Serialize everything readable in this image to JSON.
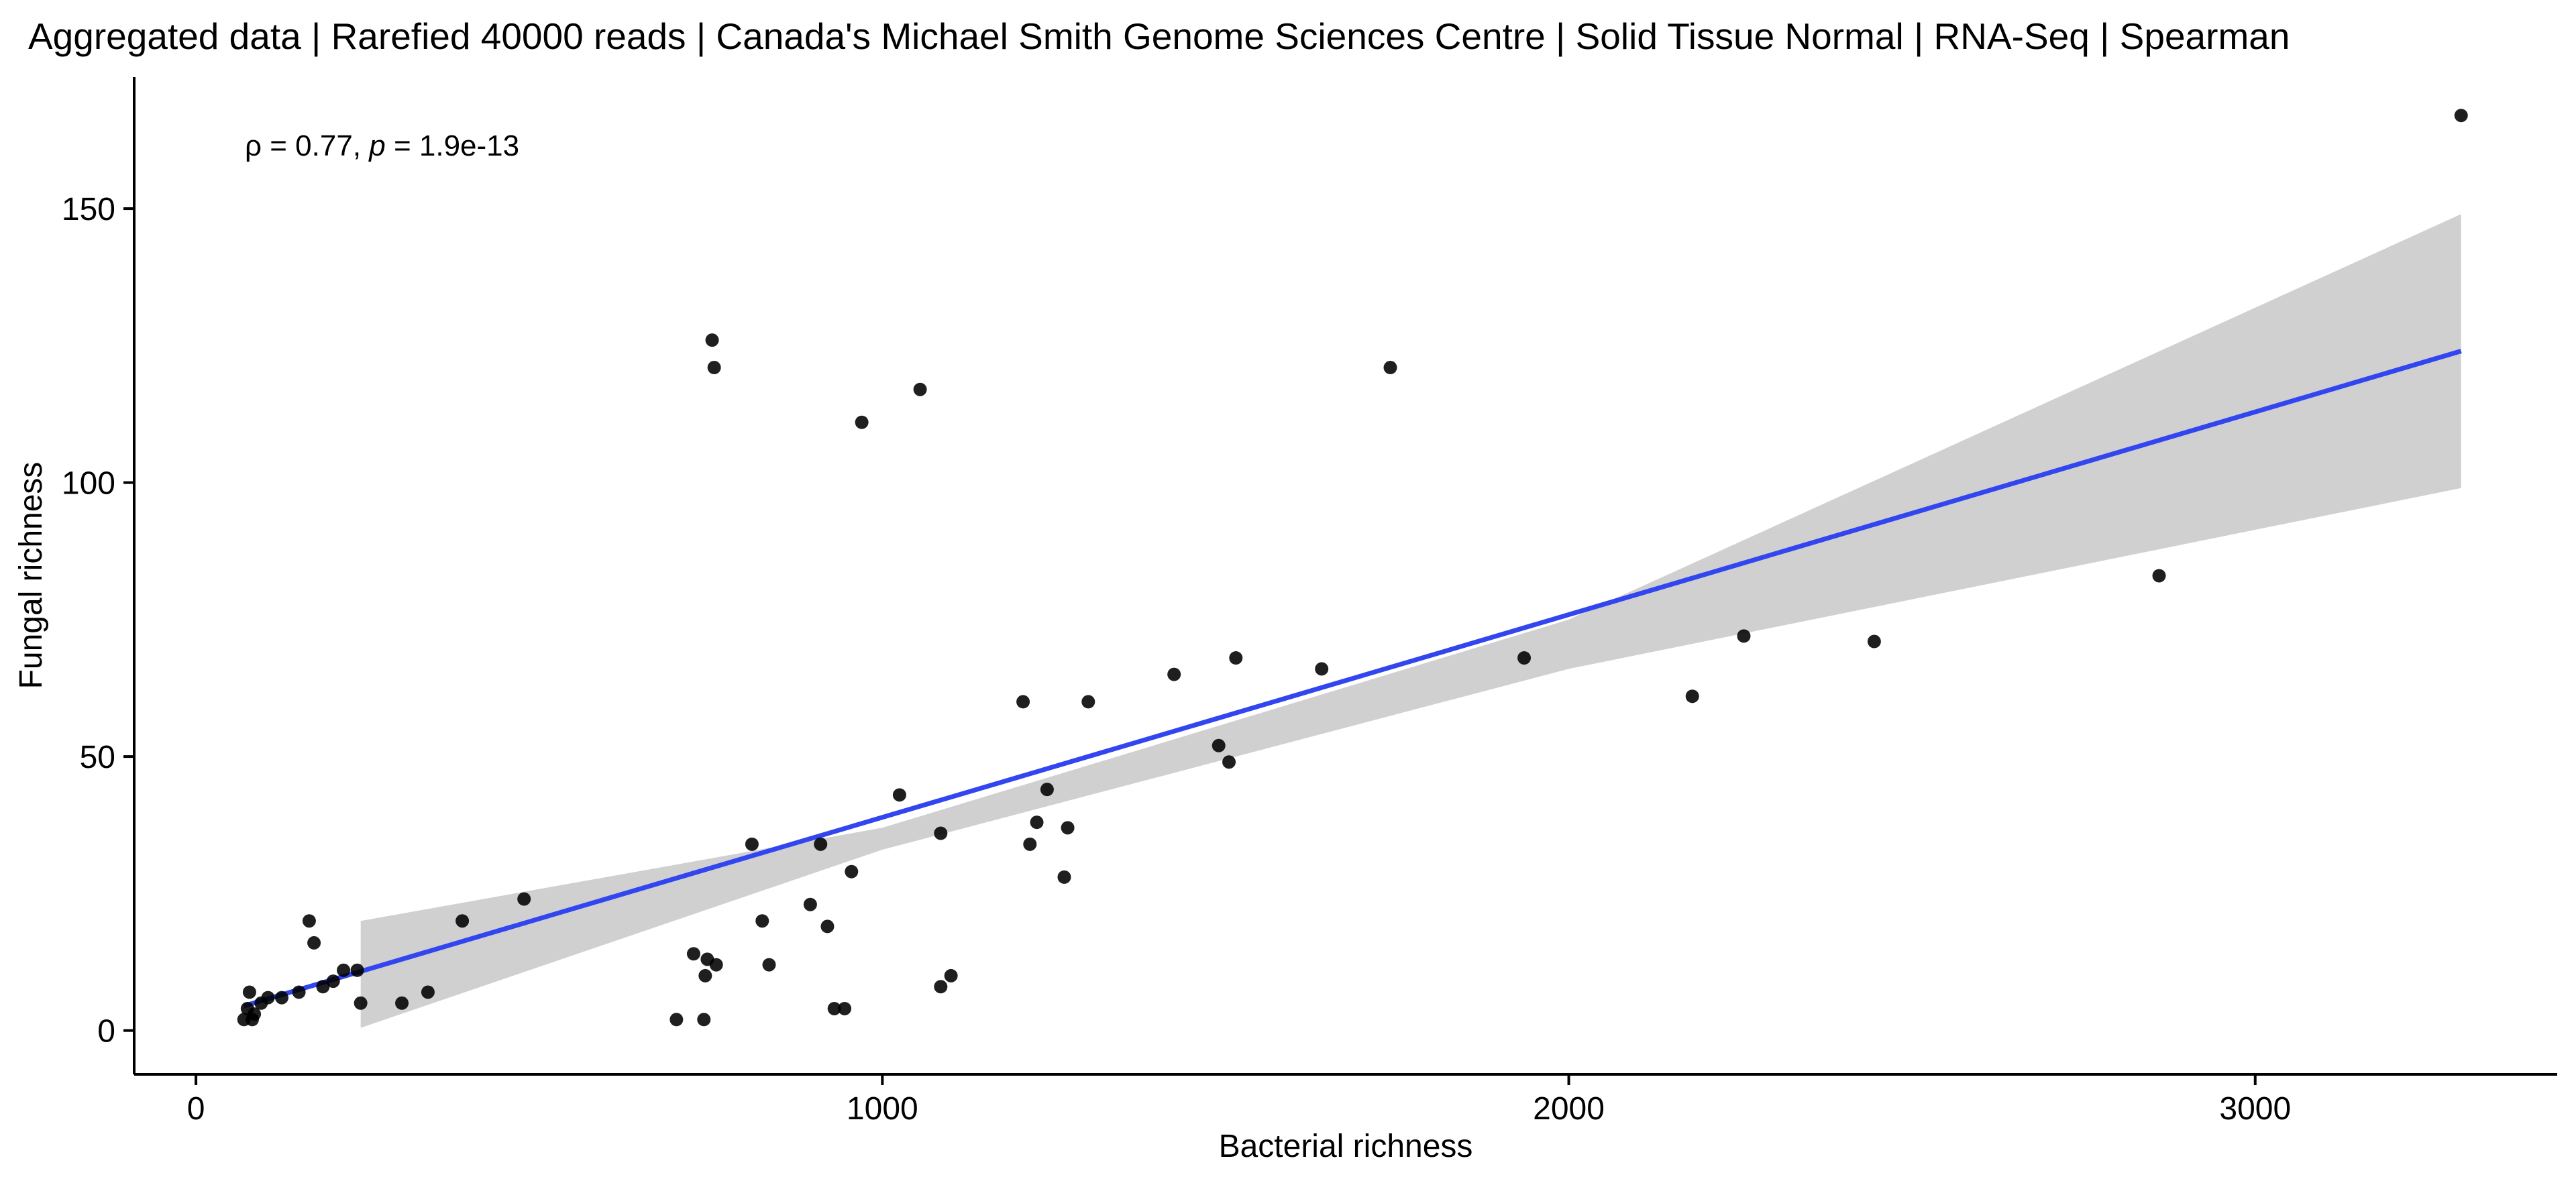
{
  "chart_data": {
    "type": "scatter",
    "title": "Aggregated data | Rarefied 40000 reads | Canada's Michael Smith Genome Sciences Centre | Solid Tissue Normal | RNA-Seq | Spearman",
    "xlabel": "Bacterial richness",
    "ylabel": "Fungal richness",
    "xlim": [
      -90,
      3440
    ],
    "ylim": [
      -8,
      174
    ],
    "xticks": [
      0,
      1000,
      2000,
      3000
    ],
    "yticks": [
      0,
      50,
      100,
      150
    ],
    "grid": false,
    "legend": "none",
    "annotation": {
      "rho_symbol": "ρ",
      "rho_text": " = 0.77, ",
      "p_symbol": "p",
      "p_text": " = 1.9e-13"
    },
    "points": [
      {
        "x": 70,
        "y": 2
      },
      {
        "x": 75,
        "y": 4
      },
      {
        "x": 78,
        "y": 7
      },
      {
        "x": 82,
        "y": 2
      },
      {
        "x": 85,
        "y": 3
      },
      {
        "x": 95,
        "y": 5
      },
      {
        "x": 105,
        "y": 6
      },
      {
        "x": 125,
        "y": 6
      },
      {
        "x": 150,
        "y": 7
      },
      {
        "x": 165,
        "y": 20
      },
      {
        "x": 172,
        "y": 16
      },
      {
        "x": 185,
        "y": 8
      },
      {
        "x": 200,
        "y": 9
      },
      {
        "x": 215,
        "y": 11
      },
      {
        "x": 235,
        "y": 11
      },
      {
        "x": 240,
        "y": 5
      },
      {
        "x": 300,
        "y": 5
      },
      {
        "x": 338,
        "y": 7
      },
      {
        "x": 388,
        "y": 20
      },
      {
        "x": 478,
        "y": 24
      },
      {
        "x": 700,
        "y": 2
      },
      {
        "x": 725,
        "y": 14
      },
      {
        "x": 740,
        "y": 2
      },
      {
        "x": 742,
        "y": 10
      },
      {
        "x": 745,
        "y": 13
      },
      {
        "x": 752,
        "y": 126
      },
      {
        "x": 755,
        "y": 121
      },
      {
        "x": 758,
        "y": 12
      },
      {
        "x": 810,
        "y": 34
      },
      {
        "x": 825,
        "y": 20
      },
      {
        "x": 835,
        "y": 12
      },
      {
        "x": 895,
        "y": 23
      },
      {
        "x": 910,
        "y": 34
      },
      {
        "x": 920,
        "y": 19
      },
      {
        "x": 930,
        "y": 4
      },
      {
        "x": 945,
        "y": 4
      },
      {
        "x": 955,
        "y": 29
      },
      {
        "x": 970,
        "y": 111
      },
      {
        "x": 1025,
        "y": 43
      },
      {
        "x": 1055,
        "y": 117
      },
      {
        "x": 1085,
        "y": 36
      },
      {
        "x": 1085,
        "y": 8
      },
      {
        "x": 1100,
        "y": 10
      },
      {
        "x": 1205,
        "y": 60
      },
      {
        "x": 1215,
        "y": 34
      },
      {
        "x": 1225,
        "y": 38
      },
      {
        "x": 1240,
        "y": 44
      },
      {
        "x": 1265,
        "y": 28
      },
      {
        "x": 1270,
        "y": 37
      },
      {
        "x": 1300,
        "y": 60
      },
      {
        "x": 1425,
        "y": 65
      },
      {
        "x": 1490,
        "y": 52
      },
      {
        "x": 1505,
        "y": 49
      },
      {
        "x": 1515,
        "y": 68
      },
      {
        "x": 1640,
        "y": 66
      },
      {
        "x": 1740,
        "y": 121
      },
      {
        "x": 1935,
        "y": 68
      },
      {
        "x": 2180,
        "y": 61
      },
      {
        "x": 2255,
        "y": 72
      },
      {
        "x": 2445,
        "y": 71
      },
      {
        "x": 2860,
        "y": 83
      },
      {
        "x": 3300,
        "y": 167
      }
    ],
    "trend_line": {
      "x": [
        70,
        3300
      ],
      "y": [
        4.5,
        124
      ]
    },
    "confidence_band": {
      "x": [
        240,
        1000,
        2000,
        3300
      ],
      "upper": [
        20,
        37,
        75,
        149
      ],
      "lower": [
        0.5,
        33,
        66,
        99
      ]
    },
    "colors": {
      "points": "#000000",
      "trend_line": "#3246f0",
      "band": "#d0d0d0",
      "axis": "#000000"
    }
  }
}
